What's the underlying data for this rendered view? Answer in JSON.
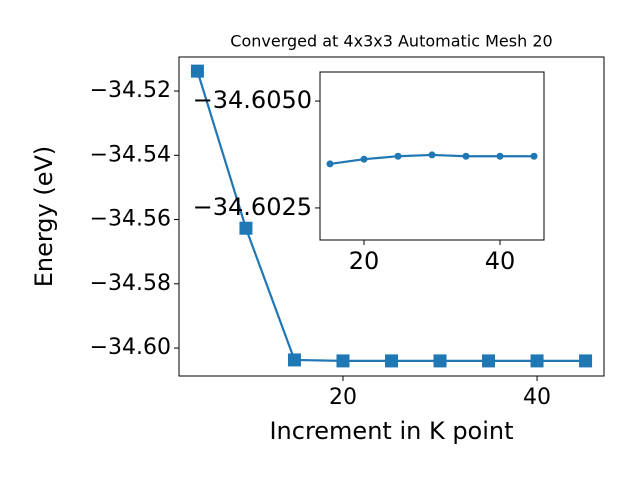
{
  "chart_data": [
    {
      "type": "line",
      "title": "Converged at 4x3x3 Automatic Mesh 20",
      "xlabel": "Increment in K point",
      "ylabel": "Energy (eV)",
      "x": [
        5,
        10,
        15,
        20,
        25,
        30,
        35,
        40,
        45
      ],
      "values": [
        -34.5138,
        -34.5627,
        -34.6037,
        -34.604,
        -34.604,
        -34.604,
        -34.604,
        -34.604,
        -34.604
      ],
      "color": "#1f77b4",
      "marker": "square",
      "xlim": [
        3.1,
        46.9
      ],
      "xticks": [
        20,
        40
      ],
      "ylim": [
        -34.6087,
        -34.5094
      ],
      "yticks": [
        {
          "value": -34.52,
          "label": "−34.52"
        },
        {
          "value": -34.54,
          "label": "−34.54"
        },
        {
          "value": -34.56,
          "label": "−34.56"
        },
        {
          "value": -34.58,
          "label": "−34.58"
        },
        {
          "value": -34.6,
          "label": "−34.60"
        }
      ]
    },
    {
      "type": "line",
      "x": [
        15,
        20,
        25,
        30,
        35,
        40,
        45
      ],
      "values": [
        -34.60353,
        -34.60364,
        -34.60371,
        -34.60374,
        -34.60371,
        -34.60371,
        -34.60371
      ],
      "color": "#1f77b4",
      "marker": "circle",
      "xlim": [
        13.53,
        46.47
      ],
      "xticks": [
        20,
        40
      ],
      "ylim": [
        -34.60175,
        -34.60568
      ],
      "yticks": [
        {
          "value": -34.605,
          "label": "−34.6050"
        },
        {
          "value": -34.6025,
          "label": "−34.6025"
        }
      ]
    }
  ]
}
